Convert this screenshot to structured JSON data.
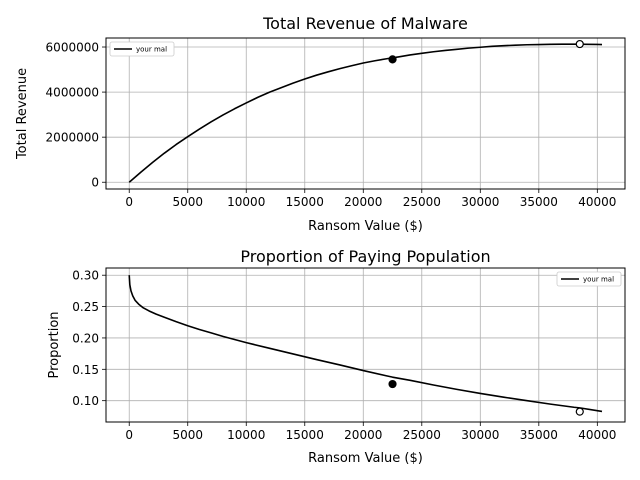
{
  "chart_data": [
    {
      "type": "line",
      "title": "Total Revenue of Malware",
      "xlabel": "Ransom Value ($)",
      "ylabel": "Total Revenue",
      "xlim": [
        -1985,
        42365
      ],
      "ylim": [
        -300000,
        6400000
      ],
      "xticks": [
        0,
        5000,
        10000,
        15000,
        20000,
        25000,
        30000,
        35000,
        40000
      ],
      "xtick_labels": [
        "0",
        "5000",
        "10000",
        "15000",
        "20000",
        "25000",
        "30000",
        "35000",
        "40000"
      ],
      "yticks": [
        0,
        2000000,
        4000000,
        6000000
      ],
      "ytick_labels": [
        "0",
        "2000000",
        "4000000",
        "6000000"
      ],
      "grid": true,
      "legend_position": "top-left",
      "series": [
        {
          "name": "your mal",
          "color": "#000000",
          "x": [
            0,
            1000,
            2000,
            3000,
            4000,
            5000,
            6000,
            7000,
            8000,
            9000,
            10000,
            11000,
            12000,
            13000,
            14000,
            15000,
            16000,
            17000,
            18000,
            19000,
            20000,
            21000,
            22000,
            22500,
            23000,
            24000,
            25000,
            26000,
            27000,
            28000,
            29000,
            30000,
            31000,
            32000,
            33000,
            34000,
            35000,
            36000,
            37000,
            38000,
            38500,
            39000,
            40000,
            40400
          ],
          "y": [
            0,
            450000,
            880000,
            1290000,
            1670000,
            2020000,
            2360000,
            2680000,
            2980000,
            3260000,
            3520000,
            3770000,
            4000000,
            4200000,
            4400000,
            4580000,
            4750000,
            4900000,
            5040000,
            5170000,
            5290000,
            5390000,
            5480000,
            5520000,
            5560000,
            5650000,
            5720000,
            5790000,
            5850000,
            5900000,
            5950000,
            5990000,
            6030000,
            6060000,
            6080000,
            6100000,
            6110000,
            6120000,
            6125000,
            6125000,
            6125000,
            6120000,
            6115000,
            6110000
          ]
        }
      ],
      "markers": [
        {
          "x": 22500,
          "y": 5450000,
          "style": "filled"
        },
        {
          "x": 38500,
          "y": 6130000,
          "style": "open"
        }
      ]
    },
    {
      "type": "line",
      "title": "Proportion of Paying Population",
      "xlabel": "Ransom Value ($)",
      "ylabel": "Proportion",
      "xlim": [
        -1985,
        42365
      ],
      "ylim": [
        0.066,
        0.3115
      ],
      "xticks": [
        0,
        5000,
        10000,
        15000,
        20000,
        25000,
        30000,
        35000,
        40000
      ],
      "xtick_labels": [
        "0",
        "5000",
        "10000",
        "15000",
        "20000",
        "25000",
        "30000",
        "35000",
        "40000"
      ],
      "yticks": [
        0.1,
        0.15,
        0.2,
        0.25,
        0.3
      ],
      "ytick_labels": [
        "0.10",
        "0.15",
        "0.20",
        "0.25",
        "0.30"
      ],
      "grid": true,
      "legend_position": "top-right",
      "series": [
        {
          "name": "your mal",
          "color": "#000000",
          "x": [
            0,
            50,
            150,
            300,
            500,
            800,
            1200,
            1700,
            2300,
            3000,
            4000,
            5000,
            6000,
            7000,
            8000,
            9000,
            10000,
            12000,
            14000,
            16000,
            18000,
            20000,
            22000,
            22500,
            24000,
            26000,
            28000,
            30000,
            32000,
            34000,
            36000,
            38000,
            38500,
            40000,
            40400
          ],
          "y": [
            0.3,
            0.285,
            0.275,
            0.267,
            0.26,
            0.254,
            0.248,
            0.243,
            0.238,
            0.233,
            0.226,
            0.2195,
            0.2135,
            0.208,
            0.2025,
            0.1975,
            0.1925,
            0.1835,
            0.1745,
            0.1655,
            0.157,
            0.148,
            0.1395,
            0.1375,
            0.1325,
            0.125,
            0.118,
            0.1115,
            0.1055,
            0.1,
            0.0945,
            0.0895,
            0.0885,
            0.084,
            0.0828
          ]
        }
      ],
      "markers": [
        {
          "x": 22500,
          "y": 0.1265,
          "style": "filled"
        },
        {
          "x": 38500,
          "y": 0.0825,
          "style": "open"
        }
      ]
    }
  ]
}
